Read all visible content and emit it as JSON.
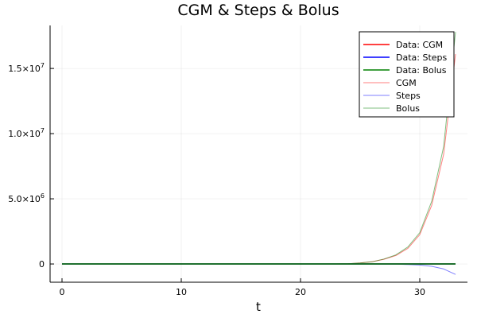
{
  "chart_data": {
    "type": "line",
    "title": "CGM & Steps & Bolus",
    "xlabel": "t",
    "ylabel": "",
    "xlim": [
      -1,
      34
    ],
    "ylim": [
      -1400000,
      18300000
    ],
    "grid": true,
    "legend_position": "top-right",
    "x_ticks": [
      {
        "value": 0,
        "label": "0"
      },
      {
        "value": 10,
        "label": "10"
      },
      {
        "value": 20,
        "label": "20"
      },
      {
        "value": 30,
        "label": "30"
      }
    ],
    "y_ticks": [
      {
        "value": 0,
        "mantissa": "0",
        "exponent": ""
      },
      {
        "value": 5000000,
        "mantissa": "5.0×10",
        "exponent": "6"
      },
      {
        "value": 10000000,
        "mantissa": "1.0×10",
        "exponent": "7"
      },
      {
        "value": 15000000,
        "mantissa": "1.5×10",
        "exponent": "7"
      }
    ],
    "x": [
      0,
      1,
      2,
      3,
      4,
      5,
      6,
      7,
      8,
      9,
      10,
      11,
      12,
      13,
      14,
      15,
      16,
      17,
      18,
      19,
      20,
      21,
      22,
      23,
      24,
      25,
      26,
      27,
      28,
      29,
      30,
      31,
      32,
      33
    ],
    "series": [
      {
        "name": "Data: CGM",
        "color": "#ff0000",
        "width": 1.6,
        "opacity": 1,
        "values": [
          0,
          0,
          0,
          0,
          0,
          0,
          0,
          0,
          0,
          0,
          0,
          0,
          0,
          0,
          0,
          0,
          0,
          0,
          0,
          0,
          0,
          0,
          0,
          0,
          0,
          0,
          0,
          0,
          0,
          0,
          0,
          0,
          0,
          0
        ]
      },
      {
        "name": "Data: Steps",
        "color": "#0000ff",
        "width": 1.6,
        "opacity": 1,
        "values": [
          0,
          0,
          0,
          0,
          0,
          0,
          0,
          0,
          0,
          0,
          0,
          0,
          0,
          0,
          0,
          0,
          0,
          0,
          0,
          0,
          0,
          0,
          0,
          0,
          0,
          0,
          0,
          0,
          0,
          0,
          0,
          0,
          0,
          0
        ]
      },
      {
        "name": "Data: Bolus",
        "color": "#008000",
        "width": 1.6,
        "opacity": 1,
        "values": [
          0,
          0,
          0,
          0,
          0,
          0,
          0,
          0,
          0,
          0,
          0,
          0,
          0,
          0,
          0,
          0,
          0,
          0,
          0,
          0,
          0,
          0,
          0,
          0,
          0,
          0,
          0,
          0,
          0,
          0,
          0,
          0,
          0,
          0
        ]
      },
      {
        "name": "CGM",
        "color": "#ff0000",
        "width": 1.0,
        "opacity": 0.5,
        "values": [
          0,
          0,
          0,
          0,
          0,
          0,
          0,
          0,
          0,
          0,
          0,
          0,
          0,
          0,
          0,
          0,
          0,
          0,
          0,
          0,
          0,
          500,
          1000,
          3000,
          20000,
          80000,
          170000,
          360000,
          650000,
          1200000,
          2250000,
          4500000,
          8400000,
          16100000
        ]
      },
      {
        "name": "Steps",
        "color": "#0000ff",
        "width": 1.0,
        "opacity": 0.5,
        "values": [
          0,
          0,
          0,
          0,
          0,
          0,
          0,
          0,
          0,
          0,
          0,
          0,
          0,
          0,
          0,
          0,
          0,
          0,
          0,
          0,
          0,
          0,
          0,
          0,
          0,
          -2000,
          -4000,
          -8000,
          -15000,
          -40000,
          -80000,
          -180000,
          -380000,
          -800000
        ]
      },
      {
        "name": "Bolus",
        "color": "#008000",
        "width": 1.0,
        "opacity": 0.5,
        "values": [
          0,
          0,
          0,
          0,
          0,
          0,
          0,
          0,
          0,
          0,
          0,
          0,
          0,
          0,
          0,
          0,
          0,
          0,
          0,
          0,
          0,
          500,
          1000,
          3000,
          20000,
          80000,
          170000,
          380000,
          700000,
          1300000,
          2400000,
          4800000,
          9000000,
          17800000
        ]
      }
    ]
  }
}
